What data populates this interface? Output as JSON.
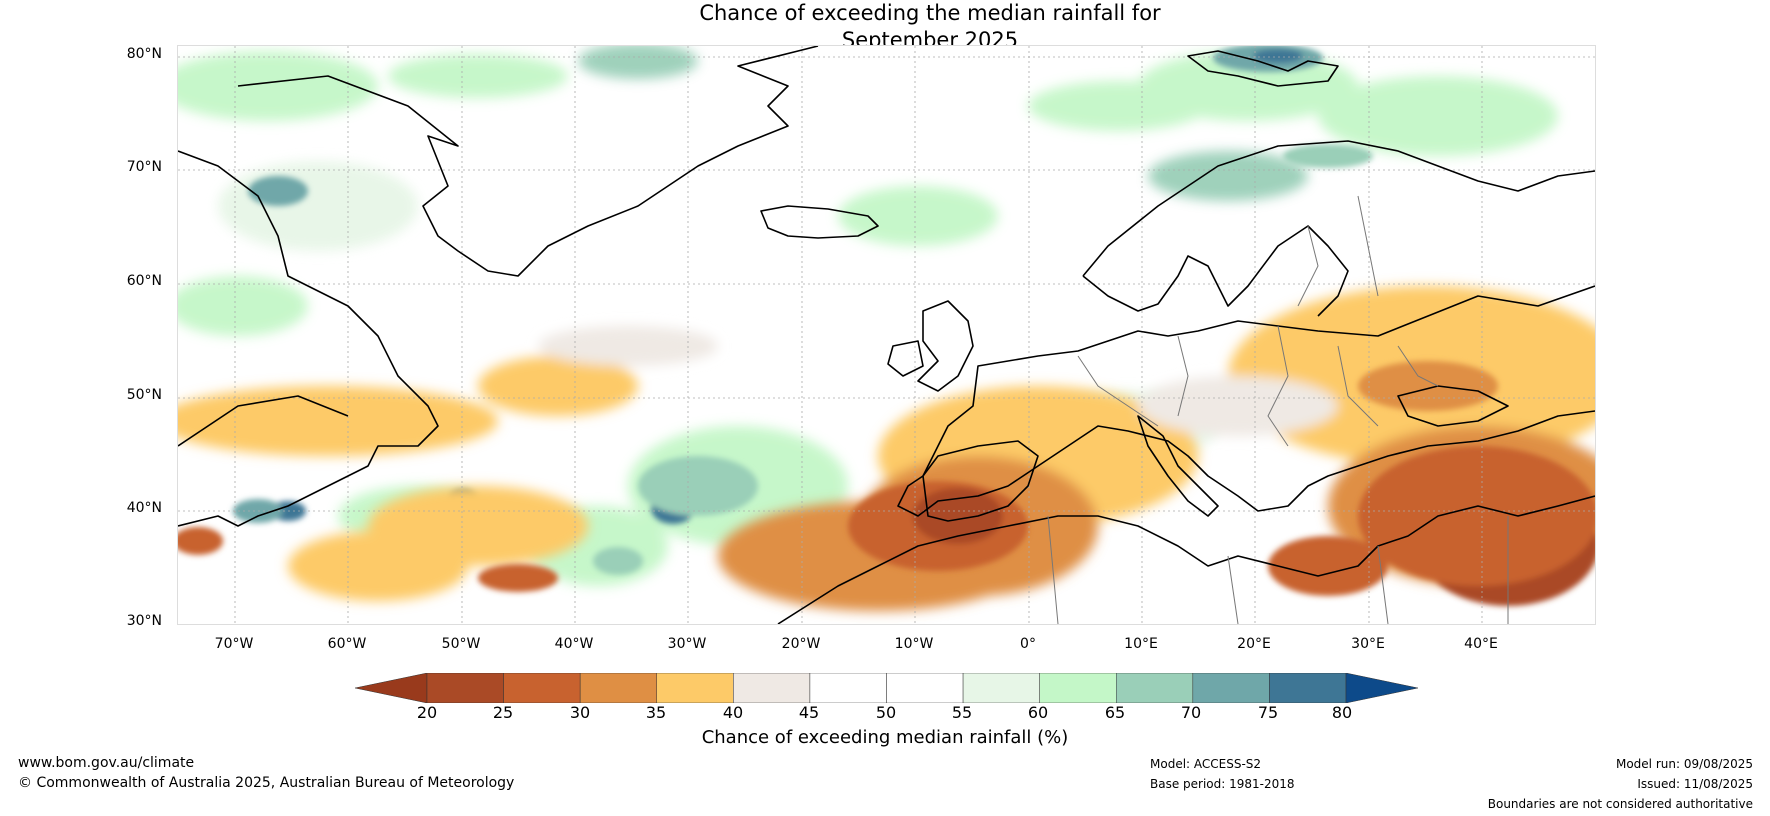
{
  "title_line1": "Chance of exceeding the median rainfall for",
  "title_line2": "September 2025",
  "map": {
    "lat_labels": [
      "80°N",
      "70°N",
      "60°N",
      "50°N",
      "40°N",
      "30°N"
    ],
    "lon_labels": [
      "70°W",
      "60°W",
      "50°W",
      "40°W",
      "30°W",
      "20°W",
      "10°W",
      "0°",
      "10°E",
      "20°E",
      "30°E",
      "40°E"
    ],
    "lat_range": [
      30,
      81
    ],
    "lon_range": [
      -75,
      50
    ]
  },
  "colorbar": {
    "title": "Chance of exceeding median rainfall (%)",
    "ticks": [
      "20",
      "25",
      "30",
      "35",
      "40",
      "45",
      "50",
      "55",
      "60",
      "65",
      "70",
      "75",
      "80"
    ],
    "under_color": "#993a1c",
    "over_color": "#0d4a8a",
    "colors": [
      "#aa4a26",
      "#c8622f",
      "#df8f44",
      "#fdca68",
      "#efe9e4",
      "#ffffff",
      "#ffffff",
      "#e7f6e7",
      "#c4f7c8",
      "#9acfb8",
      "#6fa7a9",
      "#3e7695"
    ]
  },
  "footer": {
    "website": "www.bom.gov.au/climate",
    "copyright": "© Commonwealth of Australia 2025, Australian Bureau of Meteorology",
    "model": "Model: ACCESS-S2",
    "base_period": "Base period: 1981-2018",
    "model_run": "Model run: 09/08/2025",
    "issued": "Issued: 11/08/2025",
    "disclaimer": "Boundaries are not considered authoritative"
  }
}
